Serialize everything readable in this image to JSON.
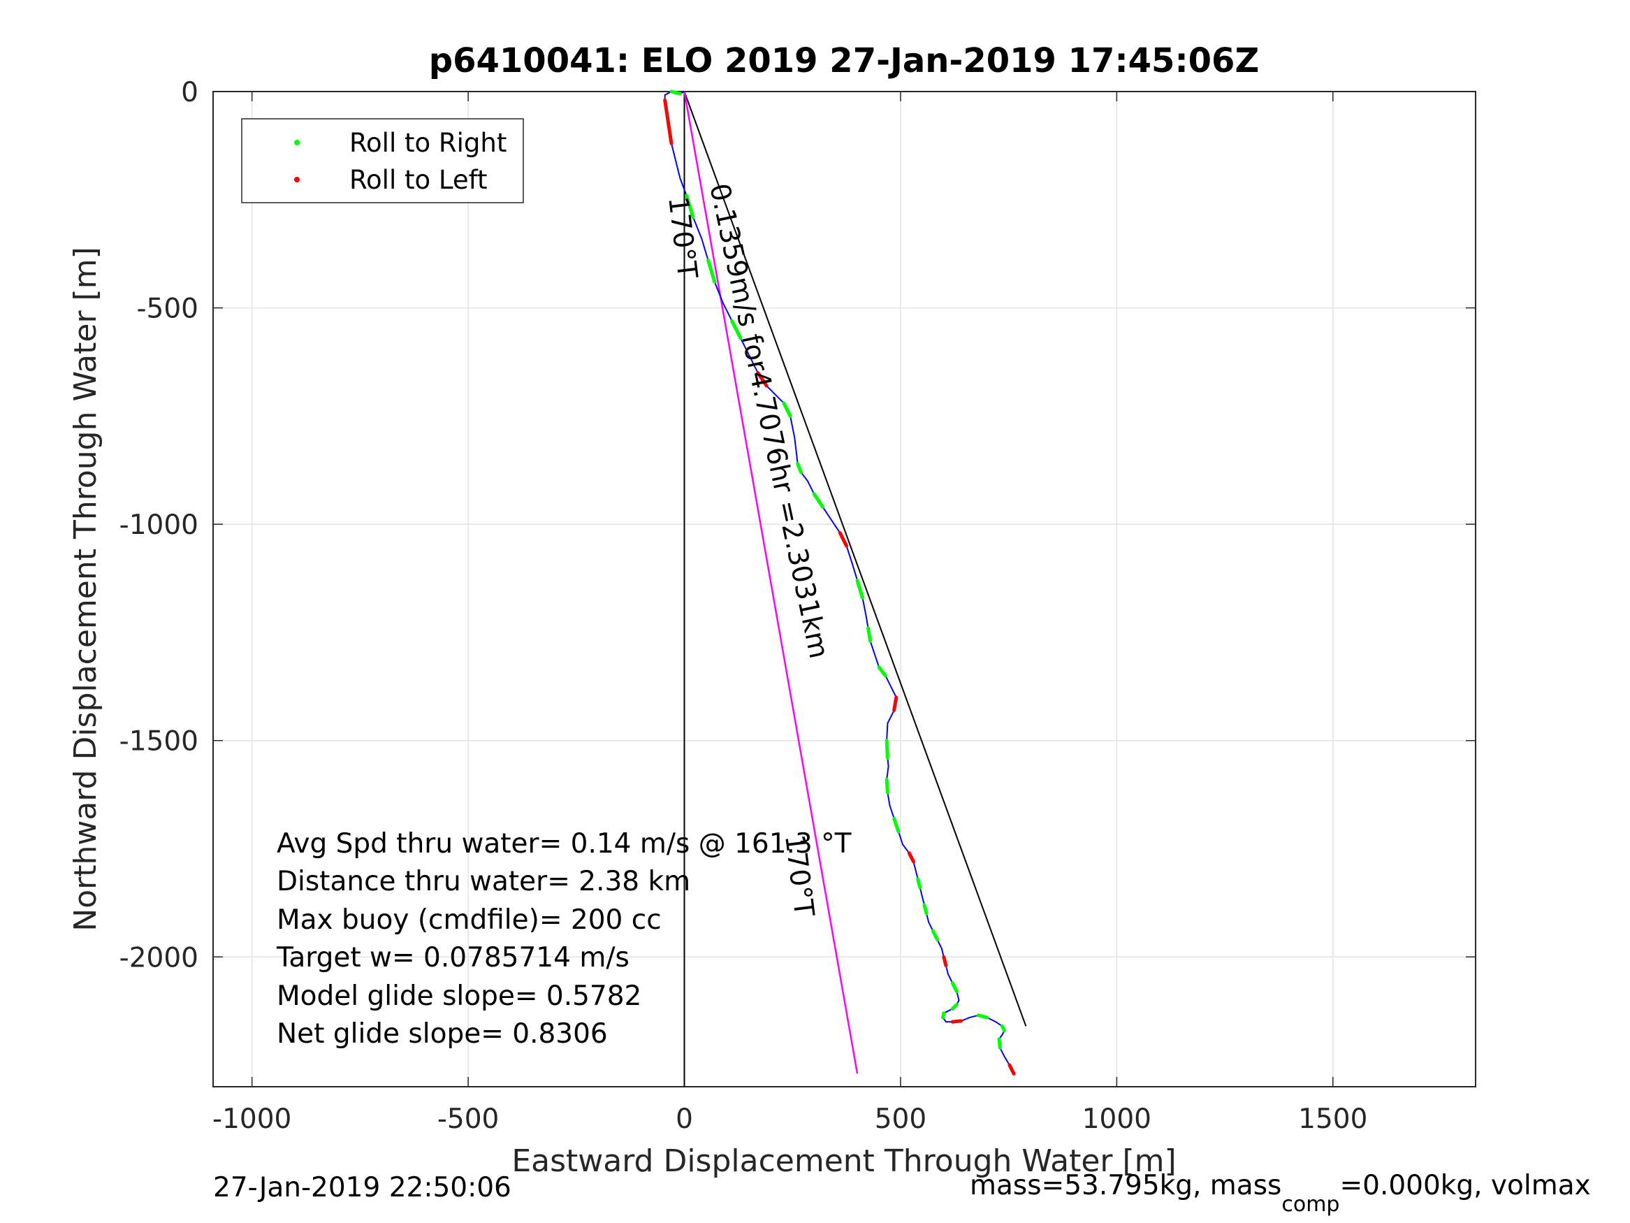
{
  "chart_data": {
    "type": "line",
    "title": "p6410041: ELO 2019 27-Jan-2019 17:45:06Z",
    "xlabel": "Eastward Displacement Through Water [m]",
    "ylabel": "Northward Displacement Through Water [m]",
    "xlim": [
      -1090,
      1830
    ],
    "ylim": [
      -2300,
      0
    ],
    "xticks": [
      -1000,
      -500,
      0,
      500,
      1000,
      1500
    ],
    "yticks": [
      0,
      -500,
      -1000,
      -1500,
      -2000
    ],
    "grid": true,
    "legend_position": "top-left",
    "legend": [
      {
        "label": "Roll to Right",
        "color": "#00ff00"
      },
      {
        "label": "Roll to Left",
        "color": "#ff0000"
      }
    ],
    "track": {
      "color": "#0000ff",
      "x": [
        0,
        -10,
        -30,
        -45,
        -45,
        -30,
        -10,
        5,
        20,
        40,
        55,
        70,
        90,
        110,
        130,
        150,
        170,
        190,
        210,
        230,
        245,
        255,
        262,
        270,
        285,
        300,
        320,
        340,
        360,
        375,
        388,
        400,
        412,
        420,
        425,
        430,
        440,
        450,
        465,
        480,
        490,
        485,
        470,
        468,
        470,
        472,
        468,
        470,
        475,
        485,
        495,
        505,
        520,
        530,
        535,
        540,
        545,
        550,
        555,
        560,
        565,
        575,
        585,
        595,
        600,
        605,
        610,
        620,
        630,
        635,
        630,
        620,
        610,
        600,
        598,
        605,
        620,
        640,
        660,
        680,
        700,
        720,
        735,
        740,
        735,
        728,
        730,
        740,
        752,
        762
      ],
      "y": [
        0,
        -5,
        0,
        -8,
        -20,
        -120,
        -200,
        -240,
        -290,
        -340,
        -390,
        -440,
        -490,
        -530,
        -570,
        -610,
        -650,
        -680,
        -700,
        -720,
        -750,
        -800,
        -860,
        -880,
        -900,
        -930,
        -960,
        -990,
        -1020,
        -1050,
        -1090,
        -1130,
        -1170,
        -1210,
        -1240,
        -1270,
        -1300,
        -1330,
        -1350,
        -1380,
        -1400,
        -1430,
        -1460,
        -1500,
        -1540,
        -1560,
        -1590,
        -1620,
        -1650,
        -1680,
        -1710,
        -1740,
        -1760,
        -1780,
        -1800,
        -1820,
        -1840,
        -1860,
        -1880,
        -1900,
        -1920,
        -1940,
        -1960,
        -1980,
        -2000,
        -2020,
        -2040,
        -2060,
        -2080,
        -2100,
        -2110,
        -2120,
        -2125,
        -2130,
        -2140,
        -2150,
        -2150,
        -2148,
        -2140,
        -2135,
        -2140,
        -2150,
        -2160,
        -2170,
        -2180,
        -2190,
        -2210,
        -2230,
        -2250,
        -2270
      ]
    },
    "target_line": {
      "color": "#ff00ff",
      "x": [
        0,
        400
      ],
      "y": [
        0,
        -2270
      ]
    },
    "net_line": {
      "color": "#000000",
      "x": [
        0,
        790
      ],
      "y": [
        0,
        -2160
      ]
    },
    "heading_ref": {
      "color": "#000000",
      "x": [
        0,
        0
      ],
      "y": [
        0,
        -2300
      ]
    },
    "annotations": {
      "heading_top": "170°T",
      "heading_bottom": "170°T",
      "net_label": "0.1359m/s for4.7076hr =2.3031km"
    }
  },
  "stats": [
    "Avg Spd thru water=  0.14 m/s @ 161.3 °T",
    "Distance thru water=  2.38 km",
    "Max buoy (cmdfile)= 200 cc",
    "Target w= 0.0785714 m/s",
    "Model glide slope= 0.5782",
    "Net glide slope= 0.8306"
  ],
  "footer": {
    "timestamp": "27-Jan-2019 22:50:06",
    "mass_prefix": "mass=53.795kg, mass",
    "mass_sub": "comp",
    "mass_suffix": "=0.000kg, volmax"
  }
}
